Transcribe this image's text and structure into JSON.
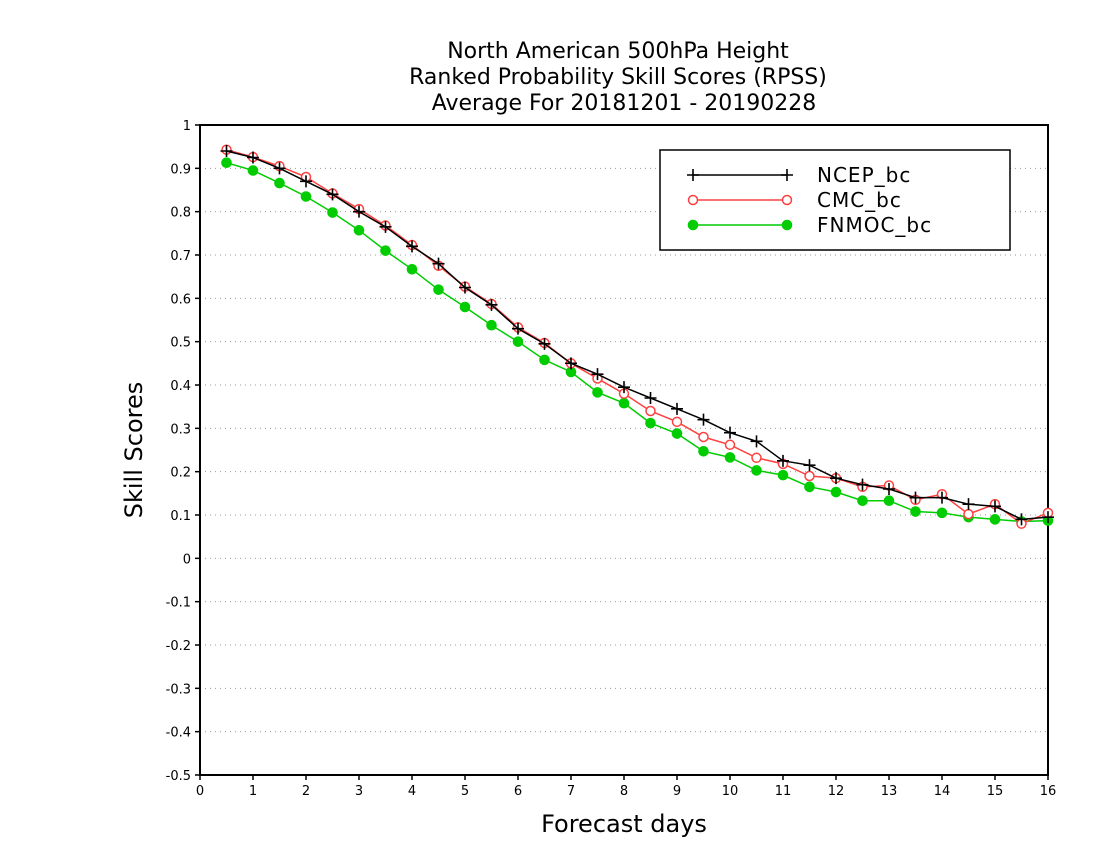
{
  "chart_data": {
    "type": "line",
    "title": "North American 500hPa Height",
    "subtitle": "Ranked Probability Skill Scores (RPSS)",
    "subtitle2": "Average For 20181201 - 20190228",
    "xlabel": "Forecast days",
    "ylabel": "Skill Scores",
    "xlim": [
      0,
      16
    ],
    "ylim": [
      -0.5,
      1
    ],
    "xticks": [
      "0",
      "1",
      "2",
      "3",
      "4",
      "5",
      "6",
      "7",
      "8",
      "9",
      "10",
      "11",
      "12",
      "13",
      "14",
      "15",
      "16"
    ],
    "yticks": [
      "1",
      "0.9",
      "0.8",
      "0.7",
      "0.6",
      "0.5",
      "0.4",
      "0.3",
      "0.2",
      "0.1",
      "0",
      "-0.1",
      "-0.2",
      "-0.3",
      "-0.4",
      "-0.5"
    ],
    "grid": "horizontal dotted",
    "legend_position": "top-right",
    "x": [
      0.5,
      1,
      1.5,
      2,
      2.5,
      3,
      3.5,
      4,
      4.5,
      5,
      5.5,
      6,
      6.5,
      7,
      7.5,
      8,
      8.5,
      9,
      9.5,
      10,
      10.5,
      11,
      11.5,
      12,
      12.5,
      13,
      13.5,
      14,
      14.5,
      15,
      15.5,
      16
    ],
    "series": [
      {
        "name": "NCEP_bc",
        "color": "#000000",
        "marker": "plus",
        "values": [
          0.94,
          0.925,
          0.9,
          0.87,
          0.84,
          0.8,
          0.765,
          0.72,
          0.68,
          0.625,
          0.585,
          0.53,
          0.495,
          0.45,
          0.425,
          0.395,
          0.37,
          0.345,
          0.32,
          0.29,
          0.27,
          0.225,
          0.215,
          0.185,
          0.17,
          0.16,
          0.14,
          0.14,
          0.125,
          0.12,
          0.09,
          0.095
        ]
      },
      {
        "name": "CMC_bc",
        "color": "#ff4040",
        "marker": "open-circle",
        "values": [
          0.943,
          0.926,
          0.905,
          0.88,
          0.842,
          0.806,
          0.768,
          0.723,
          0.675,
          0.627,
          0.587,
          0.533,
          0.497,
          0.45,
          0.415,
          0.38,
          0.34,
          0.315,
          0.28,
          0.262,
          0.232,
          0.218,
          0.19,
          0.185,
          0.165,
          0.168,
          0.135,
          0.148,
          0.102,
          0.125,
          0.08,
          0.105
        ]
      },
      {
        "name": "FNMOC_bc",
        "color": "#00cc00",
        "marker": "filled-circle",
        "values": [
          0.913,
          0.895,
          0.866,
          0.835,
          0.798,
          0.757,
          0.71,
          0.667,
          0.62,
          0.58,
          0.538,
          0.5,
          0.458,
          0.43,
          0.383,
          0.358,
          0.312,
          0.288,
          0.247,
          0.233,
          0.203,
          0.192,
          0.165,
          0.153,
          0.133,
          0.133,
          0.108,
          0.105,
          0.095,
          0.09,
          0.085,
          0.087
        ]
      }
    ]
  }
}
